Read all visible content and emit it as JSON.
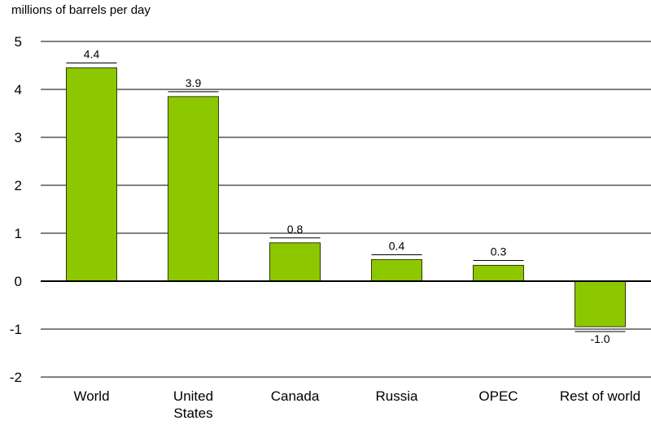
{
  "chart_data": {
    "type": "bar",
    "ylabel": "millions of barrels per day",
    "categories": [
      [
        "World"
      ],
      [
        "United",
        "States"
      ],
      [
        "Canada"
      ],
      [
        "Russia"
      ],
      [
        "OPEC"
      ],
      [
        "Rest of world"
      ]
    ],
    "values": [
      4.45,
      3.85,
      0.8,
      0.45,
      0.33,
      -0.95
    ],
    "data_labels": [
      "4.4",
      "3.9",
      "0.8",
      "0.4",
      "0.3",
      "-1.0"
    ],
    "ylim": [
      -2,
      5
    ],
    "yticks": [
      5,
      4,
      3,
      2,
      1,
      0,
      -1,
      -2
    ],
    "grid": true,
    "bar_color": "#8cc700"
  }
}
